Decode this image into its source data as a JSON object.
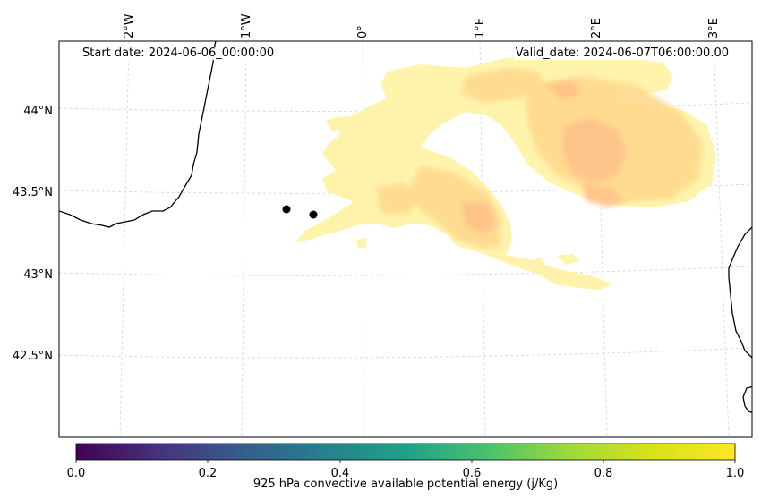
{
  "header": {
    "start_date": "Start date: 2024-06-06_00:00:00",
    "valid_date": "Valid_date: 2024-06-07T06:00:00.00"
  },
  "map": {
    "lon_ticks": [
      "2°W",
      "1°W",
      "0°",
      "1°E",
      "2°E",
      "3°E"
    ],
    "lat_ticks": [
      "44°N",
      "43.5°N",
      "43°N",
      "42.5°N"
    ],
    "gridlines": true,
    "field_colors": [
      "#fff3a8",
      "#ffd98f",
      "#ffc088"
    ],
    "coastline_color": "#000000",
    "marker_color": "#000000"
  },
  "colorbar": {
    "label": "925 hPa convective available potential energy (j/Kg)",
    "ticks": [
      "0.0",
      "0.2",
      "0.4",
      "0.6",
      "0.8",
      "1.0"
    ],
    "colormap": "viridis"
  }
}
